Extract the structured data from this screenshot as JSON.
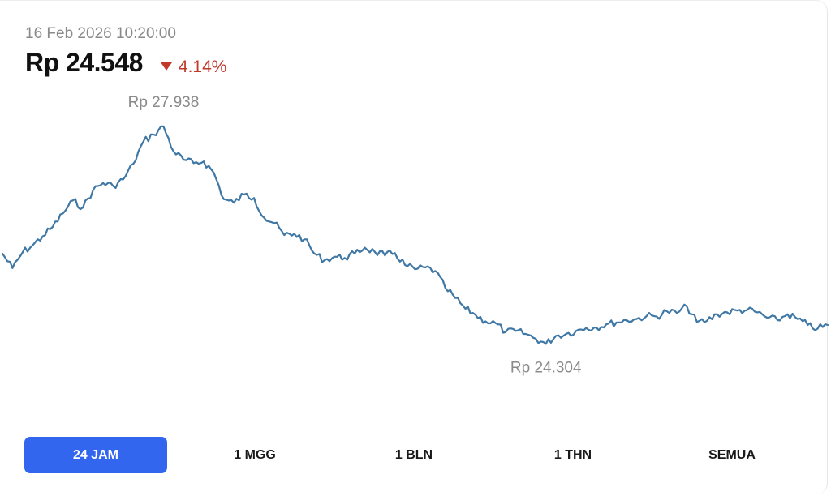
{
  "header": {
    "timestamp": "16 Feb 2026 10:20:00",
    "price": "Rp 24.548",
    "change": "4.14%",
    "change_direction": "down",
    "change_color": "#c0392b"
  },
  "chart_data": {
    "type": "line",
    "line_color": "#3f77a5",
    "grid": false,
    "max_label": "Rp 27.938",
    "min_label": "Rp 24.304",
    "y_max": 27938,
    "y_min": 24304,
    "ylim": [
      22860,
      28950
    ],
    "series": [
      {
        "values": [
          25810,
          25570,
          25830,
          25950,
          26100,
          26260,
          26480,
          26700,
          26580,
          26870,
          26990,
          26940,
          27050,
          27310,
          27680,
          27800,
          27938,
          27520,
          27380,
          27320,
          27350,
          27160,
          26720,
          26660,
          26800,
          26740,
          26410,
          26320,
          26120,
          26140,
          26050,
          25810,
          25700,
          25760,
          25740,
          25810,
          25910,
          25840,
          25780,
          25820,
          25620,
          25550,
          25580,
          25520,
          25240,
          25070,
          24890,
          24790,
          24680,
          24650,
          24500,
          24520,
          24470,
          24390,
          24304,
          24440,
          24470,
          24520,
          24570,
          24580,
          24630,
          24660,
          24700,
          24720,
          24770,
          24760,
          24850,
          24820,
          24930,
          24670,
          24690,
          24800,
          24830,
          24860,
          24870,
          24830,
          24740,
          24700,
          24800,
          24720,
          24620,
          24560,
          24620
        ]
      }
    ]
  },
  "tabs": [
    {
      "label": "24 JAM",
      "active": true
    },
    {
      "label": "1 MGG",
      "active": false
    },
    {
      "label": "1 BLN",
      "active": false
    },
    {
      "label": "1 THN",
      "active": false
    },
    {
      "label": "SEMUA",
      "active": false
    }
  ]
}
